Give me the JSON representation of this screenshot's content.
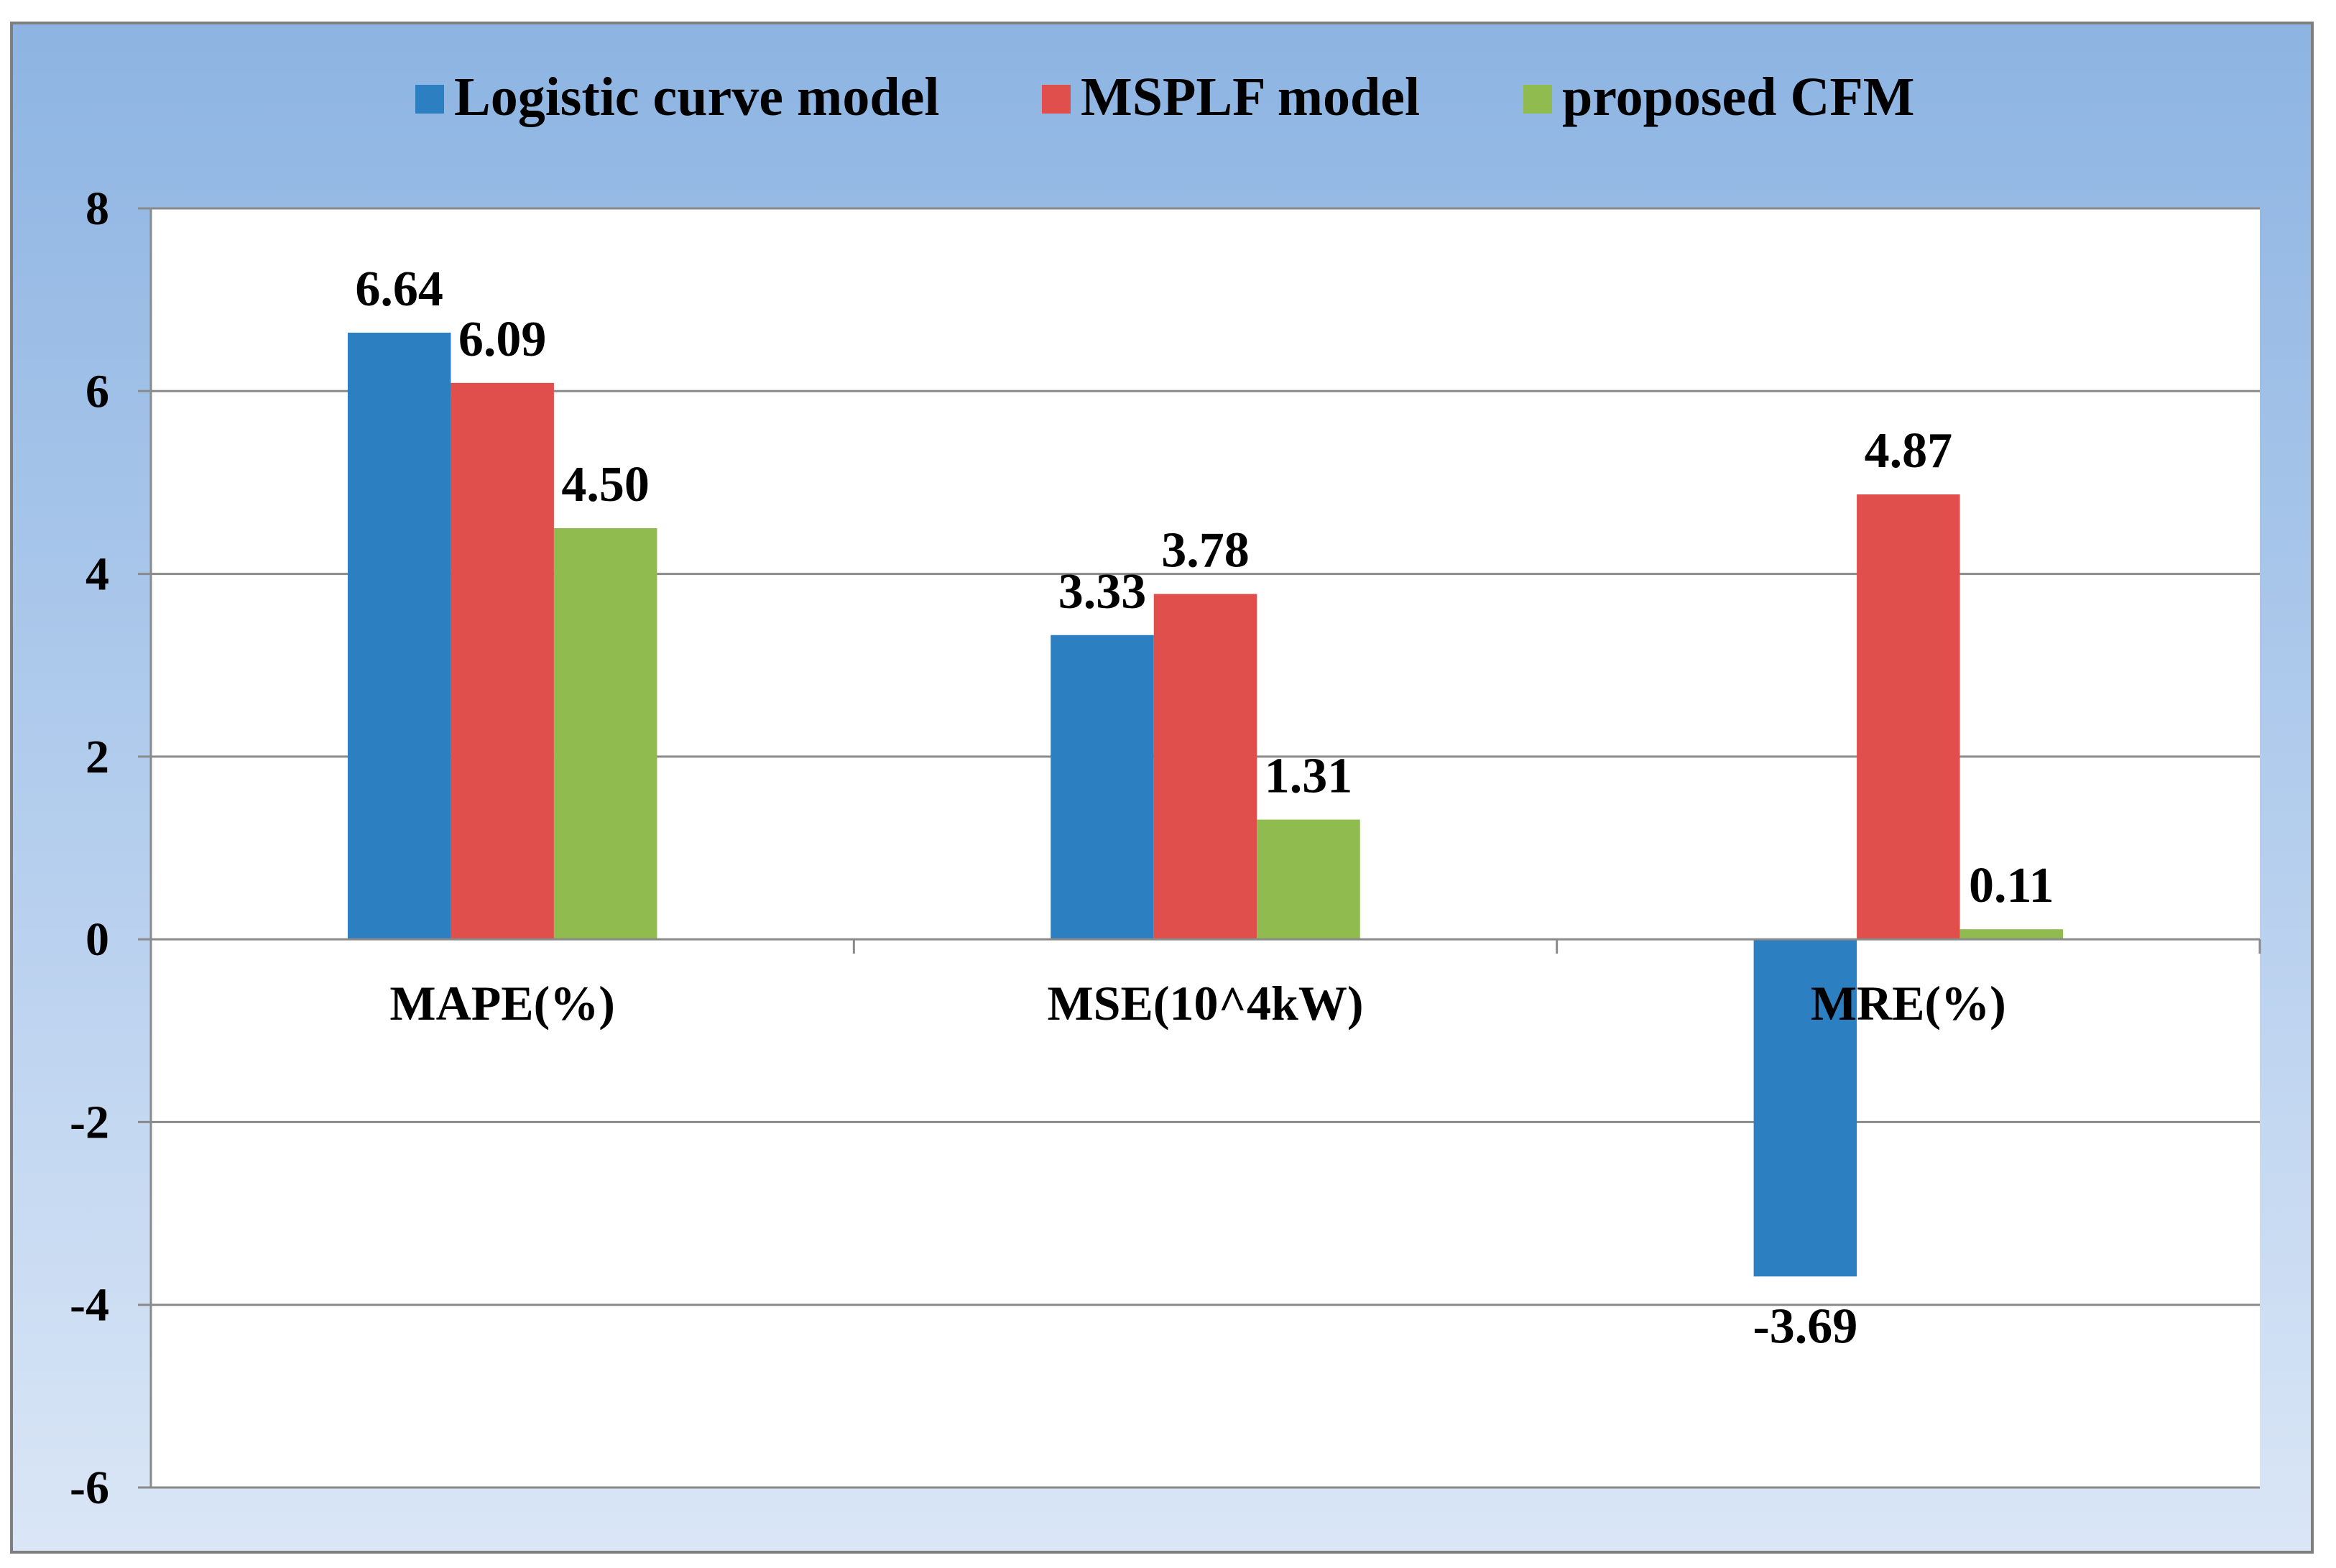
{
  "chart_data": {
    "type": "bar",
    "title": "",
    "xlabel": "",
    "ylabel": "",
    "categories": [
      "MAPE(%)",
      "MSE(10^4kW)",
      "MRE(%)"
    ],
    "series": [
      {
        "name": "Logistic curve model",
        "values": [
          6.64,
          3.33,
          -3.69
        ],
        "labels": [
          "6.64",
          "3.33",
          "-3.69"
        ],
        "color": "#2c7fc0"
      },
      {
        "name": "MSPLF model",
        "values": [
          6.09,
          3.78,
          4.87
        ],
        "labels": [
          "6.09",
          "3.78",
          "4.87"
        ],
        "color": "#e04f4c"
      },
      {
        "name": "proposed CFM",
        "values": [
          4.5,
          1.31,
          0.11
        ],
        "labels": [
          "4.50",
          "1.31",
          "0.11"
        ],
        "color": "#8fbb4f"
      }
    ],
    "ylim": [
      -6,
      8
    ],
    "yticks": [
      8,
      6,
      4,
      2,
      0,
      -2,
      -4,
      -6
    ],
    "ytick_labels": [
      "8",
      "6",
      "4",
      "2",
      "0",
      "-2",
      "-4",
      "-6"
    ],
    "grid": true,
    "legend": "top-center"
  }
}
